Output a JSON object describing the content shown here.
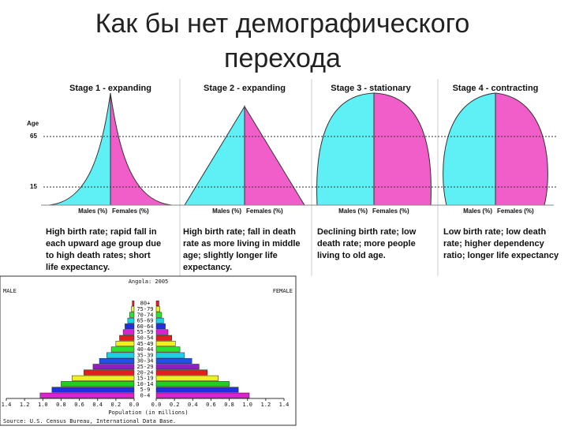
{
  "title": [
    "Как бы нет демографического",
    "перехода"
  ],
  "age_axis": {
    "label": "Age",
    "ticks": [
      65,
      15
    ]
  },
  "axis_labels": {
    "males": "Males (%)",
    "females": "Females (%)"
  },
  "stages": [
    {
      "title": "Stage 1 - expanding",
      "description": [
        "High birth rate; rapid fall in",
        "each upward age group due",
        "to high death rates; short",
        "life expectancy."
      ]
    },
    {
      "title": "Stage 2 - expanding",
      "description": [
        "High birth rate; fall in death",
        "rate as more living in middle",
        "age; slightly longer life",
        "expectancy."
      ]
    },
    {
      "title": "Stage 3 - stationary",
      "description": [
        "Declining birth rate; low",
        "death rate; more people",
        "living to old age."
      ]
    },
    {
      "title": "Stage 4 - contracting",
      "description": [
        "Low birth rate; low death",
        "rate; higher dependency",
        "ratio; longer life expectancy"
      ]
    }
  ],
  "pyramid": {
    "title": "Angola: 2005",
    "male": "MALE",
    "female": "FEMALE",
    "age_groups": [
      "0-4",
      "5-9",
      "10-14",
      "15-19",
      "20-24",
      "25-29",
      "30-34",
      "35-39",
      "40-44",
      "45-49",
      "50-54",
      "55-59",
      "60-64",
      "65-69",
      "70-74",
      "75-79",
      "80+"
    ],
    "male_values": [
      1.03,
      0.9,
      0.8,
      0.68,
      0.55,
      0.45,
      0.38,
      0.3,
      0.25,
      0.2,
      0.16,
      0.12,
      0.1,
      0.07,
      0.05,
      0.03,
      0.02
    ],
    "female_values": [
      1.02,
      0.9,
      0.8,
      0.68,
      0.56,
      0.47,
      0.39,
      0.31,
      0.26,
      0.21,
      0.17,
      0.13,
      0.1,
      0.08,
      0.06,
      0.04,
      0.03
    ],
    "colors": [
      "#e020d0",
      "#2030e0",
      "#20d020",
      "#f0f020",
      "#e02020",
      "#9020c0",
      "#2050f0",
      "#20d0e0",
      "#30e030",
      "#f0f020",
      "#e02020",
      "#e020d0",
      "#2030e0",
      "#20d0e0",
      "#30e030",
      "#f0f020",
      "#e02020"
    ],
    "xlim": [
      0,
      1.4
    ],
    "xticks": [
      {
        "value": 0,
        "label": "0.0"
      },
      0.2,
      0.4,
      0.6,
      0.8,
      {
        "value": 1,
        "label": "1.0"
      },
      1.2,
      1.4
    ],
    "xlabel": "Population (in millions)",
    "source": "Source: U.S. Census Bureau, International Data Base."
  }
}
